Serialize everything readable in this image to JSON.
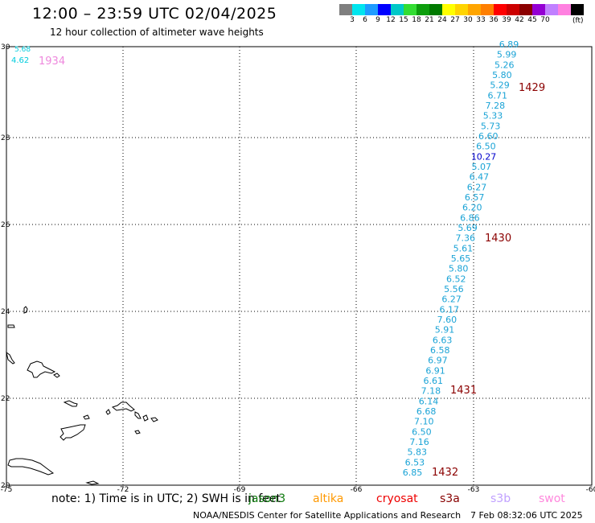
{
  "header": {
    "title": "12:00 – 23:59 UTC 02/04/2025",
    "subtitle": "12 hour collection of altimeter wave heights"
  },
  "legend": {
    "units": "(ft)",
    "colors": [
      "#7f7f7f",
      "#00e5ee",
      "#1e9bff",
      "#0000ff",
      "#00c8c8",
      "#33dd33",
      "#0d9e0d",
      "#007a00",
      "#ffff00",
      "#ffd400",
      "#ffa500",
      "#ff7f00",
      "#ff0000",
      "#cc0000",
      "#8b0000",
      "#9400d3",
      "#c080ff",
      "#ff80e0",
      "#000000"
    ],
    "labels": [
      "3",
      "6",
      "9",
      "12",
      "15",
      "18",
      "21",
      "24",
      "27",
      "30",
      "33",
      "36",
      "39",
      "42",
      "45",
      "70"
    ]
  },
  "map": {
    "x_axis_labels": [
      "-75",
      "-72",
      "-69",
      "-66",
      "-63",
      "-60"
    ],
    "y_axis_labels": [
      "20",
      "22",
      "24",
      "26",
      "28",
      "30"
    ],
    "corner_readings": [
      {
        "value": "5.68",
        "color": "#00ccdd"
      },
      {
        "value": "4.62",
        "color": "#00ccdd"
      },
      {
        "value": "1934",
        "color": "#ee88dd"
      }
    ],
    "track_readings": [
      "6.89",
      "5.99",
      "5.26",
      "5.80",
      "5.29",
      "6.71",
      "7.28",
      "5.33",
      "5.73",
      "6.60",
      "6.50",
      "10.27",
      "5.07",
      "6.47",
      "6.27",
      "6.57",
      "6.20",
      "6.86",
      "5.69",
      "7.36",
      "5.61",
      "5.65",
      "5.80",
      "6.52",
      "5.56",
      "6.27",
      "6.17",
      "7.60",
      "5.91",
      "6.63",
      "6.58",
      "6.97",
      "6.91",
      "6.61",
      "7.18",
      "6.14",
      "6.68",
      "7.10",
      "6.50",
      "7.16",
      "5.83",
      "6.53",
      "6.85"
    ],
    "highlight_value": "10.27",
    "track_color": "#1aa3d6",
    "highlight_color": "#0000cc",
    "time_labels": [
      "1429",
      "1430",
      "1431",
      "1432"
    ],
    "time_label_color": "#8b0000"
  },
  "footer": {
    "note": "note:  1) Time is in UTC;  2) SWH is in feet",
    "missions": [
      {
        "name": "jason3",
        "color": "#0d7a0d"
      },
      {
        "name": "altika",
        "color": "#ff9900"
      },
      {
        "name": "cryosat",
        "color": "#ee0000"
      },
      {
        "name": "s3a",
        "color": "#880000"
      },
      {
        "name": "s3b",
        "color": "#c0a0ff"
      },
      {
        "name": "swot",
        "color": "#ff88dd"
      }
    ],
    "credit": "NOAA/NESDIS Center for Satellite Applications and Research",
    "timestamp": "7 Feb 08:32:06 UTC 2025"
  }
}
